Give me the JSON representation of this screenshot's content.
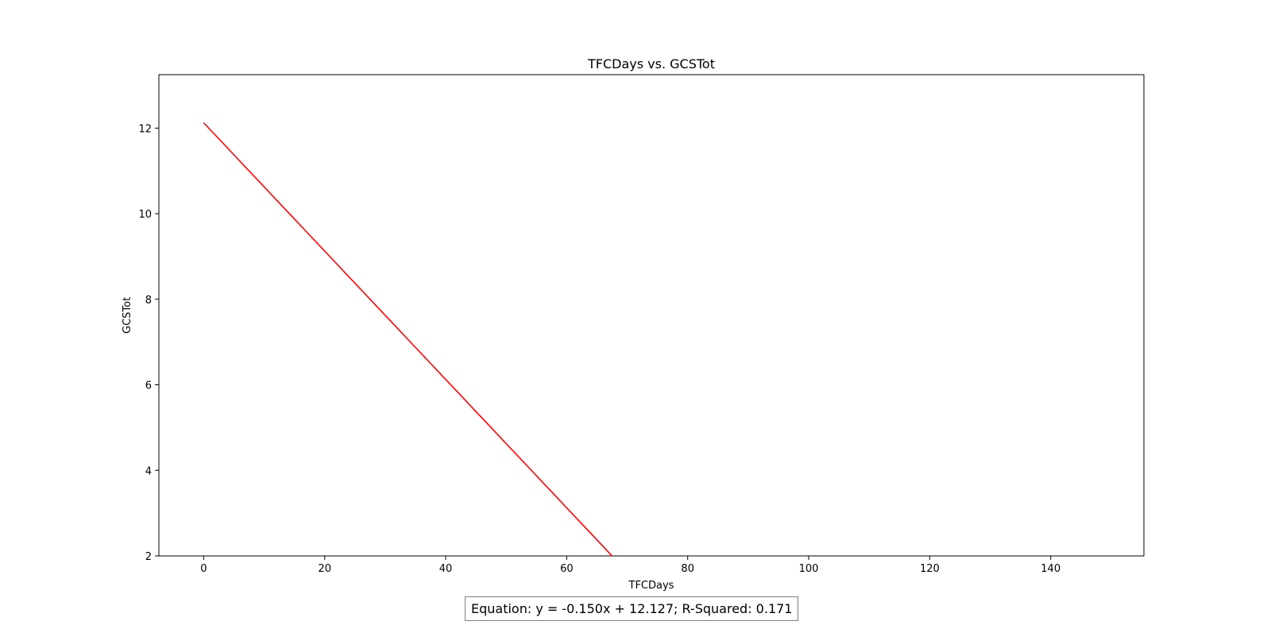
{
  "chart_data": {
    "type": "line",
    "title": "TFCDays vs. GCSTot",
    "xlabel": "TFCDays",
    "ylabel": "GCSTot",
    "xlim": [
      -7.4,
      155.4
    ],
    "ylim": [
      2,
      13.25
    ],
    "xticks": [
      0,
      20,
      40,
      60,
      80,
      100,
      120,
      140
    ],
    "yticks": [
      2,
      4,
      6,
      8,
      10,
      12
    ],
    "grid": false,
    "series": [
      {
        "color": "#ff0000",
        "x": [
          0,
          67.5
        ],
        "y": [
          12.127,
          2.0
        ]
      }
    ],
    "annotation": "Equation: y = -0.150x + 12.127; R-Squared: 0.171"
  }
}
